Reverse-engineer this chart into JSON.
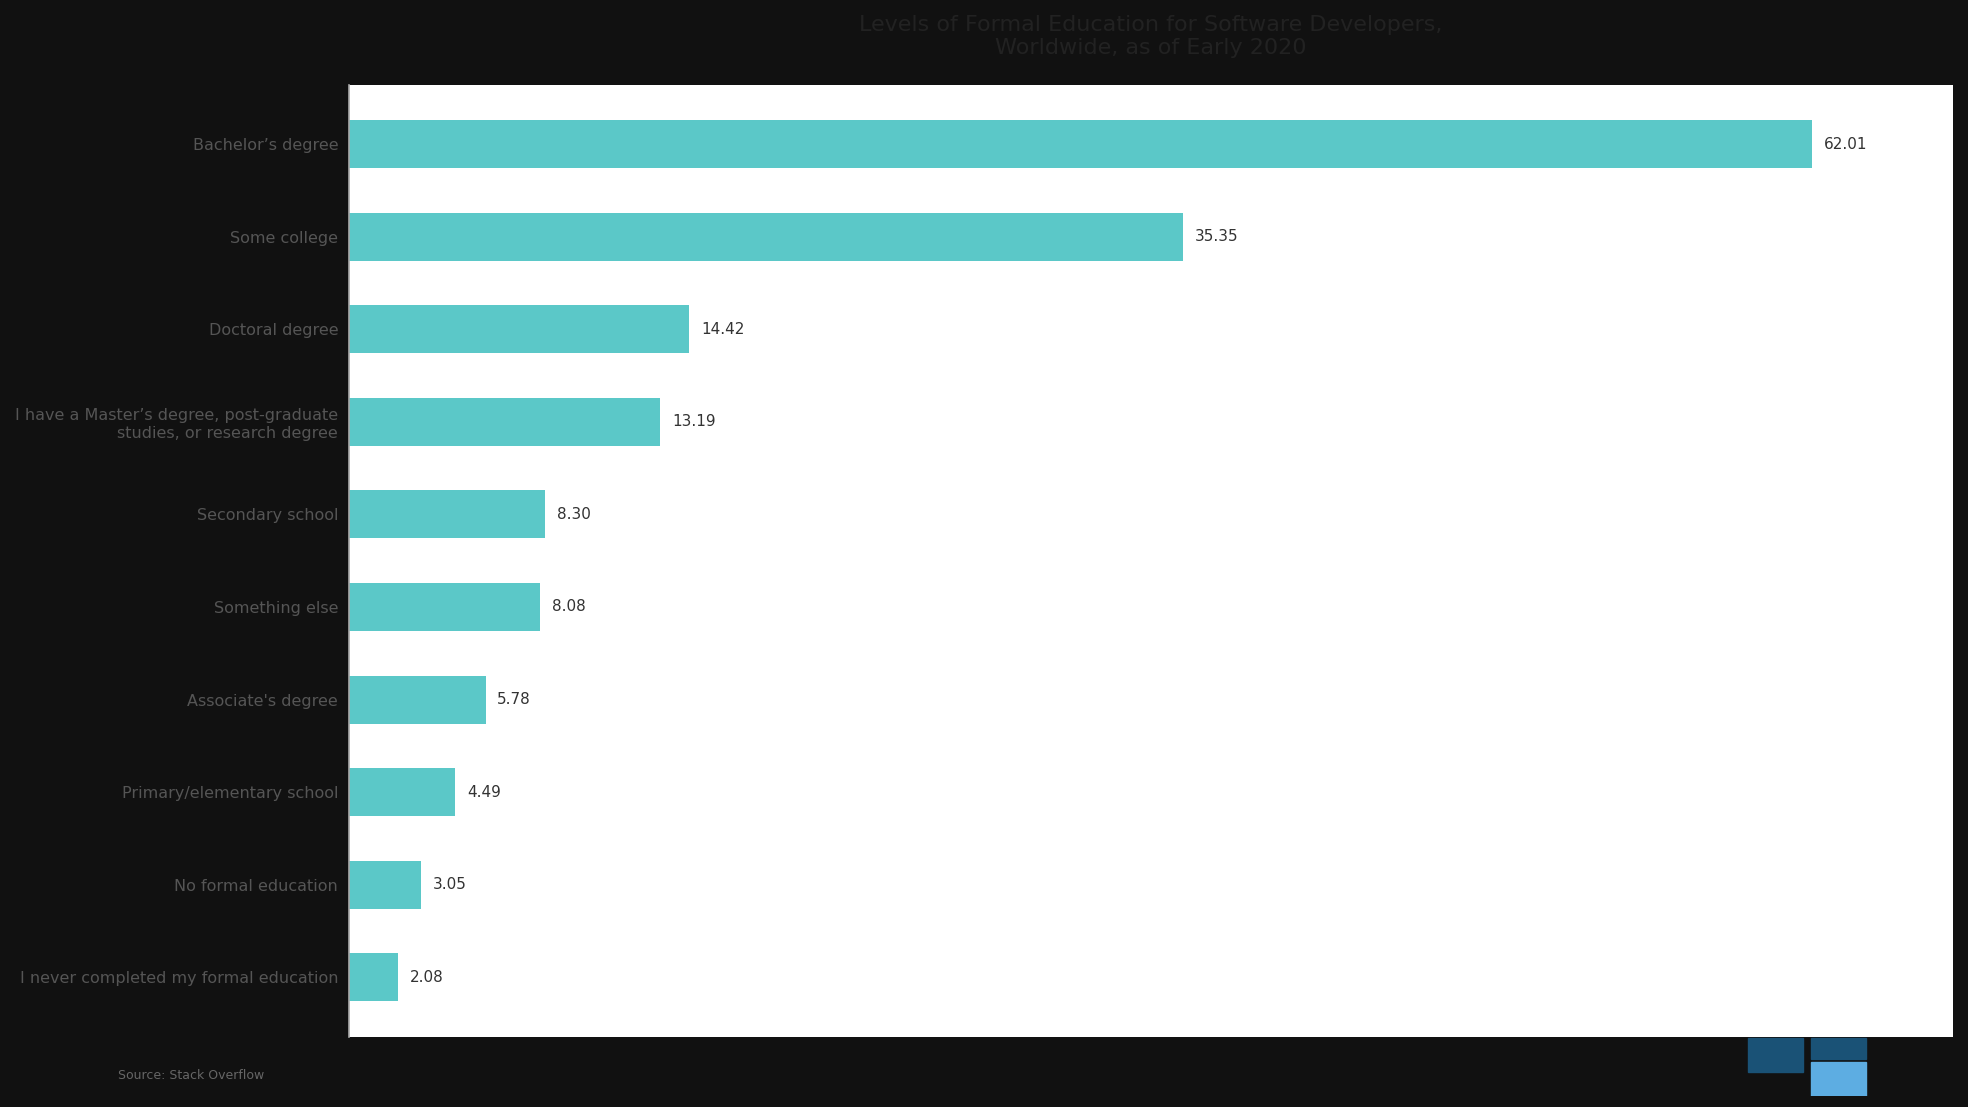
{
  "title_line1": "Levels of Formal Education for Software Developers,",
  "title_line2": "Worldwide, as of Early 2020",
  "categories": [
    "I never completed my formal education",
    "No formal education",
    "Primary/elementary school",
    "Associate's degree",
    "Something else",
    "Secondary school",
    "I have a Master’s degree, post-graduate\nstudies, or research degree",
    "Doctoral degree",
    "Some college",
    "Bachelor’s degree"
  ],
  "values": [
    2.08,
    3.05,
    4.49,
    5.78,
    8.08,
    8.3,
    13.19,
    14.42,
    35.35,
    62.01
  ],
  "value_labels": [
    "2.08",
    "3.05",
    "4.49",
    "5.78",
    "8.08",
    "8.30",
    "13.19",
    "14.42",
    "35.35",
    "62.01"
  ],
  "bar_color": "#5bc8c8",
  "plot_bg_color": "#ffffff",
  "outer_bg_color": "#111111",
  "text_color": "#333333",
  "ylabel_color": "#555555",
  "title_color": "#222222",
  "source_text": "Source: Stack Overflow",
  "label_fontsize": 11.5,
  "title_fontsize": 16,
  "value_fontsize": 11,
  "bar_height": 0.52,
  "xlim": [
    0,
    68
  ]
}
